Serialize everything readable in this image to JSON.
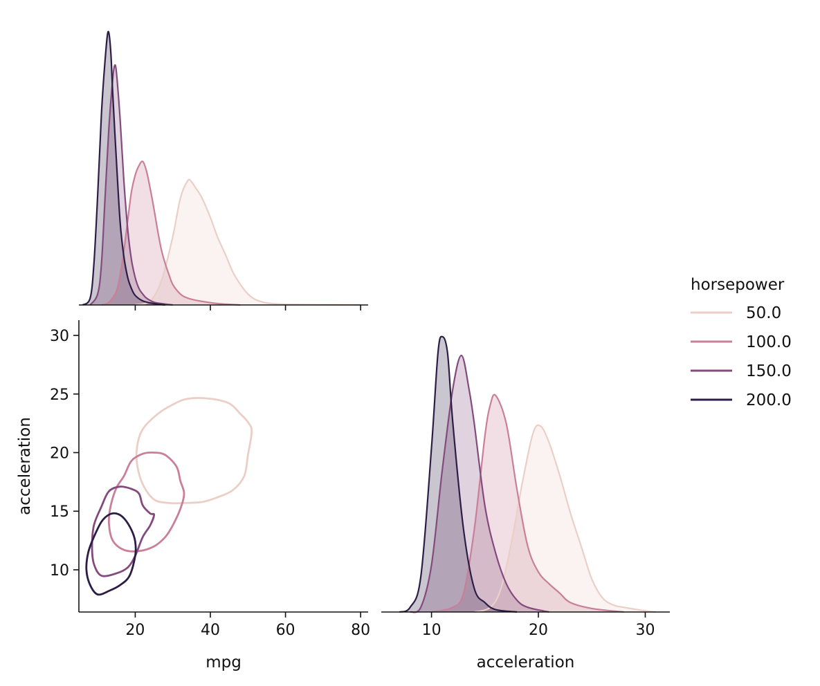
{
  "chart_data": {
    "type": "pairplot",
    "variables": [
      "mpg",
      "acceleration"
    ],
    "hue": "horsepower",
    "legend": {
      "title": "horsepower",
      "placement": "right",
      "entries": [
        {
          "label": "50.0",
          "color": "#ebcfc7"
        },
        {
          "label": "100.0",
          "color": "#c97f97"
        },
        {
          "label": "150.0",
          "color": "#834a7d"
        },
        {
          "label": "200.0",
          "color": "#2c1d45"
        }
      ]
    },
    "panels": [
      {
        "id": "mpg-density",
        "kind": "kde-1d",
        "variable": "mpg",
        "xlim": [
          5,
          82
        ],
        "xticks": [
          20,
          40,
          60,
          80
        ],
        "show_xtick_labels": false,
        "series": [
          {
            "hue": "50.0",
            "points": [
              [
                20,
                0
              ],
              [
                24,
                0.03
              ],
              [
                27,
                0.18
              ],
              [
                30,
                0.5
              ],
              [
                32,
                0.78
              ],
              [
                34,
                0.91
              ],
              [
                35,
                0.9
              ],
              [
                36,
                0.86
              ],
              [
                37,
                0.82
              ],
              [
                38,
                0.77
              ],
              [
                40,
                0.64
              ],
              [
                42,
                0.49
              ],
              [
                44,
                0.37
              ],
              [
                46,
                0.24
              ],
              [
                48,
                0.15
              ],
              [
                50,
                0.08
              ],
              [
                52,
                0.04
              ],
              [
                55,
                0.015
              ],
              [
                60,
                0.005
              ],
              [
                70,
                0.002
              ],
              [
                80,
                0
              ]
            ]
          },
          {
            "hue": "100.0",
            "points": [
              [
                11,
                0
              ],
              [
                13,
                0.02
              ],
              [
                15,
                0.1
              ],
              [
                16,
                0.22
              ],
              [
                17,
                0.4
              ],
              [
                18,
                0.62
              ],
              [
                19,
                0.83
              ],
              [
                20,
                0.95
              ],
              [
                21,
                1.02
              ],
              [
                22,
                1.05
              ],
              [
                23,
                0.98
              ],
              [
                24,
                0.85
              ],
              [
                25,
                0.7
              ],
              [
                26,
                0.54
              ],
              [
                27,
                0.4
              ],
              [
                28,
                0.3
              ],
              [
                29,
                0.22
              ],
              [
                30,
                0.15
              ],
              [
                32,
                0.08
              ],
              [
                34,
                0.05
              ],
              [
                37,
                0.03
              ],
              [
                42,
                0.01
              ],
              [
                48,
                0
              ]
            ]
          },
          {
            "hue": "150.0",
            "points": [
              [
                8,
                0
              ],
              [
                10,
                0.08
              ],
              [
                11,
                0.3
              ],
              [
                12,
                0.8
              ],
              [
                13,
                1.3
              ],
              [
                14,
                1.65
              ],
              [
                14.5,
                1.75
              ],
              [
                15,
                1.7
              ],
              [
                16,
                1.35
              ],
              [
                17,
                0.9
              ],
              [
                18,
                0.55
              ],
              [
                19,
                0.33
              ],
              [
                20,
                0.2
              ],
              [
                21,
                0.12
              ],
              [
                22,
                0.08
              ],
              [
                23,
                0.05
              ],
              [
                25,
                0.02
              ],
              [
                27,
                0.01
              ],
              [
                30,
                0
              ]
            ]
          },
          {
            "hue": "200.0",
            "points": [
              [
                6,
                0
              ],
              [
                8,
                0.05
              ],
              [
                9,
                0.3
              ],
              [
                10,
                0.8
              ],
              [
                11,
                1.4
              ],
              [
                12,
                1.8
              ],
              [
                12.8,
                2.0
              ],
              [
                13.5,
                1.85
              ],
              [
                14,
                1.55
              ],
              [
                15,
                1.05
              ],
              [
                16,
                0.6
              ],
              [
                17,
                0.35
              ],
              [
                18,
                0.2
              ],
              [
                19,
                0.12
              ],
              [
                20,
                0.07
              ],
              [
                22,
                0.03
              ],
              [
                25,
                0.01
              ],
              [
                28,
                0
              ]
            ]
          }
        ]
      },
      {
        "id": "mpg-acceleration",
        "kind": "kde-2d-contour",
        "x": "mpg",
        "y": "acceleration",
        "xlim": [
          5,
          82
        ],
        "ylim": [
          6.4,
          31.3
        ],
        "xticks": [
          20,
          40,
          60,
          80
        ],
        "yticks": [
          10,
          15,
          20,
          25,
          30
        ],
        "xlabel": "mpg",
        "ylabel": "acceleration",
        "contours": [
          {
            "hue": "50.0",
            "points": [
              [
                22,
                22
              ],
              [
                26,
                23.3
              ],
              [
                30,
                24.1
              ],
              [
                34,
                24.6
              ],
              [
                40,
                24.6
              ],
              [
                45,
                24.2
              ],
              [
                48,
                23.3
              ],
              [
                50,
                22.6
              ],
              [
                51,
                21.8
              ],
              [
                50,
                19.8
              ],
              [
                49,
                18.0
              ],
              [
                46,
                16.8
              ],
              [
                42,
                16.2
              ],
              [
                38,
                15.8
              ],
              [
                33,
                15.7
              ],
              [
                29,
                15.7
              ],
              [
                25,
                16.0
              ],
              [
                22,
                17.3
              ],
              [
                20.5,
                19.0
              ],
              [
                20.5,
                20.5
              ]
            ]
          },
          {
            "hue": "100.0",
            "points": [
              [
                17,
                18.0
              ],
              [
                19,
                19.3
              ],
              [
                22,
                19.9
              ],
              [
                25,
                20.0
              ],
              [
                28,
                19.8
              ],
              [
                31,
                18.8
              ],
              [
                32,
                17.6
              ],
              [
                33,
                16.5
              ],
              [
                32,
                15.2
              ],
              [
                30,
                13.8
              ],
              [
                28,
                12.8
              ],
              [
                25,
                12.0
              ],
              [
                21,
                11.6
              ],
              [
                17,
                11.7
              ],
              [
                14,
                12.5
              ],
              [
                13,
                14.0
              ],
              [
                13.5,
                15.5
              ],
              [
                15,
                17.0
              ]
            ]
          },
          {
            "hue": "150.0",
            "points": [
              [
                11,
                15.4
              ],
              [
                13,
                16.7
              ],
              [
                16,
                17.1
              ],
              [
                19,
                16.9
              ],
              [
                21,
                16.5
              ],
              [
                22,
                15.5
              ],
              [
                24,
                14.8
              ],
              [
                25,
                14.7
              ],
              [
                24,
                13.8
              ],
              [
                22,
                12.8
              ],
              [
                20,
                11.2
              ],
              [
                18,
                10.2
              ],
              [
                15,
                9.7
              ],
              [
                11,
                9.5
              ],
              [
                9,
                10.5
              ],
              [
                8.5,
                12.0
              ],
              [
                9,
                13.8
              ]
            ]
          },
          {
            "hue": "200.0",
            "points": [
              [
                9,
                12.8
              ],
              [
                11,
                14.1
              ],
              [
                13,
                14.7
              ],
              [
                15,
                14.8
              ],
              [
                17,
                14.4
              ],
              [
                19,
                13.4
              ],
              [
                20,
                12.4
              ],
              [
                20,
                11.2
              ],
              [
                18.5,
                9.5
              ],
              [
                16,
                8.7
              ],
              [
                13,
                8.2
              ],
              [
                10,
                7.9
              ],
              [
                8,
                8.7
              ],
              [
                7,
                10.0
              ],
              [
                7.5,
                11.5
              ]
            ]
          }
        ]
      },
      {
        "id": "acceleration-density",
        "kind": "kde-1d",
        "variable": "acceleration",
        "xlim": [
          5.3,
          32.3
        ],
        "xticks": [
          10,
          20,
          30
        ],
        "xlabel": "acceleration",
        "series": [
          {
            "hue": "50.0",
            "points": [
              [
                14,
                0
              ],
              [
                15.5,
                0.02
              ],
              [
                16.5,
                0.1
              ],
              [
                17.5,
                0.3
              ],
              [
                18.5,
                0.55
              ],
              [
                19.5,
                0.76
              ],
              [
                20.2,
                0.79
              ],
              [
                21,
                0.72
              ],
              [
                22,
                0.58
              ],
              [
                23,
                0.42
              ],
              [
                24,
                0.28
              ],
              [
                25,
                0.14
              ],
              [
                26,
                0.06
              ],
              [
                27,
                0.03
              ],
              [
                28,
                0.02
              ],
              [
                30,
                0.005
              ],
              [
                31,
                0
              ]
            ]
          },
          {
            "hue": "100.0",
            "points": [
              [
                10,
                0
              ],
              [
                12,
                0.02
              ],
              [
                13,
                0.08
              ],
              [
                14,
                0.35
              ],
              [
                15,
                0.75
              ],
              [
                15.5,
                0.88
              ],
              [
                16,
                0.92
              ],
              [
                17,
                0.8
              ],
              [
                18,
                0.52
              ],
              [
                19,
                0.28
              ],
              [
                20,
                0.17
              ],
              [
                21,
                0.12
              ],
              [
                22,
                0.08
              ],
              [
                23,
                0.04
              ],
              [
                25,
                0.015
              ],
              [
                28,
                0
              ]
            ]
          },
          {
            "hue": "150.0",
            "points": [
              [
                8,
                0
              ],
              [
                9,
                0.02
              ],
              [
                10,
                0.2
              ],
              [
                11,
                0.6
              ],
              [
                12,
                0.95
              ],
              [
                12.8,
                1.09
              ],
              [
                13.5,
                0.95
              ],
              [
                14,
                0.8
              ],
              [
                15,
                0.45
              ],
              [
                16,
                0.25
              ],
              [
                17,
                0.12
              ],
              [
                18,
                0.05
              ],
              [
                19,
                0.02
              ],
              [
                21,
                0
              ]
            ]
          },
          {
            "hue": "200.0",
            "points": [
              [
                7,
                0
              ],
              [
                8,
                0.02
              ],
              [
                9,
                0.15
              ],
              [
                10,
                0.7
              ],
              [
                10.6,
                1.1
              ],
              [
                11,
                1.17
              ],
              [
                11.5,
                1.1
              ],
              [
                12,
                0.8
              ],
              [
                13,
                0.35
              ],
              [
                14,
                0.1
              ],
              [
                15,
                0.04
              ],
              [
                16,
                0.01
              ],
              [
                18,
                0
              ]
            ]
          }
        ]
      }
    ]
  }
}
